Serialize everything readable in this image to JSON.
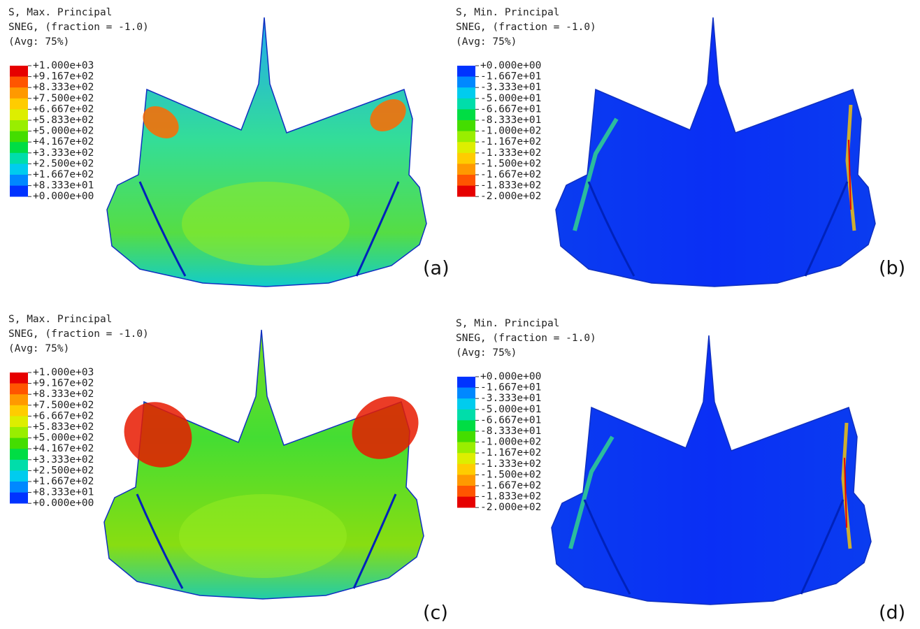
{
  "panels": [
    {
      "legend": {
        "title": [
          "S, Max. Principal",
          "SNEG, (fraction = -1.0)",
          "(Avg: 75%)"
        ],
        "labels": [
          "+1.000e+03",
          "+9.167e+02",
          "+8.333e+02",
          "+7.500e+02",
          "+6.667e+02",
          "+5.833e+02",
          "+5.000e+02",
          "+4.167e+02",
          "+3.333e+02",
          "+2.500e+02",
          "+1.667e+02",
          "+8.333e+01",
          "+0.000e+00"
        ],
        "colors": [
          "#e60000",
          "#ff5500",
          "#ff9900",
          "#ffcc00",
          "#ddee00",
          "#99ee00",
          "#44dd00",
          "#00dd44",
          "#00ddaa",
          "#00ccee",
          "#0088ff",
          "#0033ff"
        ]
      },
      "label": "(a)"
    },
    {
      "legend": {
        "title": [
          "S, Min. Principal",
          "SNEG, (fraction = -1.0)",
          "(Avg: 75%)"
        ],
        "labels": [
          "+0.000e+00",
          "-1.667e+01",
          "-3.333e+01",
          "-5.000e+01",
          "-6.667e+01",
          "-8.333e+01",
          "-1.000e+02",
          "-1.167e+02",
          "-1.333e+02",
          "-1.500e+02",
          "-1.667e+02",
          "-1.833e+02",
          "-2.000e+02"
        ],
        "colors": [
          "#0033ff",
          "#0088ff",
          "#00ccee",
          "#00ddaa",
          "#00dd44",
          "#44dd00",
          "#99ee00",
          "#ddee00",
          "#ffcc00",
          "#ff9900",
          "#ff5500",
          "#e60000"
        ]
      },
      "label": "(b)"
    },
    {
      "legend": {
        "title": [
          "S, Max. Principal",
          "SNEG, (fraction = -1.0)",
          "(Avg: 75%)"
        ],
        "labels": [
          "+1.000e+03",
          "+9.167e+02",
          "+8.333e+02",
          "+7.500e+02",
          "+6.667e+02",
          "+5.833e+02",
          "+5.000e+02",
          "+4.167e+02",
          "+3.333e+02",
          "+2.500e+02",
          "+1.667e+02",
          "+8.333e+01",
          "+0.000e+00"
        ],
        "colors": [
          "#e60000",
          "#ff5500",
          "#ff9900",
          "#ffcc00",
          "#ddee00",
          "#99ee00",
          "#44dd00",
          "#00dd44",
          "#00ddaa",
          "#00ccee",
          "#0088ff",
          "#0033ff"
        ]
      },
      "label": "(c)"
    },
    {
      "legend": {
        "title": [
          "S, Min. Principal",
          "SNEG, (fraction = -1.0)",
          "(Avg: 75%)"
        ],
        "labels": [
          "+0.000e+00",
          "-1.667e+01",
          "-3.333e+01",
          "-5.000e+01",
          "-6.667e+01",
          "-8.333e+01",
          "-1.000e+02",
          "-1.167e+02",
          "-1.333e+02",
          "-1.500e+02",
          "-1.667e+02",
          "-1.833e+02",
          "-2.000e+02"
        ],
        "colors": [
          "#0033ff",
          "#0088ff",
          "#00ccee",
          "#00ddaa",
          "#00dd44",
          "#44dd00",
          "#99ee00",
          "#ddee00",
          "#ffcc00",
          "#ff9900",
          "#ff5500",
          "#e60000"
        ]
      },
      "label": "(d)"
    }
  ]
}
